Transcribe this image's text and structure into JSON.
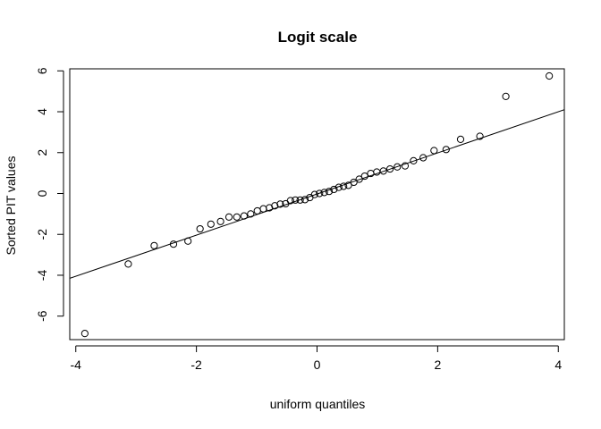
{
  "chart_data": {
    "type": "scatter",
    "title": "Logit scale",
    "xlabel": "uniform quantiles",
    "ylabel": "Sorted PIT values",
    "xlim": [
      -4.1,
      4.1
    ],
    "ylim": [
      -7.15,
      6.1
    ],
    "x_ticks": [
      -4,
      -2,
      0,
      2,
      4
    ],
    "x_tick_labels": [
      "-4",
      "-2",
      "0",
      "2",
      "4"
    ],
    "y_ticks": [
      -6,
      -4,
      -2,
      0,
      2,
      4,
      6
    ],
    "y_tick_labels": [
      "-6",
      "-4",
      "-2",
      "0",
      "2",
      "4",
      "6"
    ],
    "grid": false,
    "legend": false,
    "reference_line": {
      "x": [
        -4.1,
        4.1
      ],
      "y": [
        -4.15,
        4.1
      ]
    },
    "points": {
      "x": [
        -3.85,
        -3.13,
        -2.7,
        -2.38,
        -2.14,
        -1.94,
        -1.76,
        -1.6,
        -1.46,
        -1.33,
        -1.21,
        -1.1,
        -0.99,
        -0.89,
        -0.79,
        -0.7,
        -0.61,
        -0.52,
        -0.44,
        -0.36,
        -0.28,
        -0.2,
        -0.12,
        -0.04,
        0.04,
        0.12,
        0.2,
        0.28,
        0.36,
        0.44,
        0.52,
        0.61,
        0.7,
        0.79,
        0.89,
        0.99,
        1.1,
        1.21,
        1.33,
        1.46,
        1.6,
        1.76,
        1.94,
        2.14,
        2.38,
        2.7,
        3.13,
        3.85
      ],
      "y": [
        -6.85,
        -3.45,
        -2.55,
        -2.48,
        -2.33,
        -1.73,
        -1.5,
        -1.37,
        -1.15,
        -1.15,
        -1.1,
        -1.0,
        -0.85,
        -0.75,
        -0.7,
        -0.6,
        -0.52,
        -0.5,
        -0.35,
        -0.32,
        -0.32,
        -0.3,
        -0.2,
        -0.05,
        0.0,
        0.05,
        0.1,
        0.2,
        0.3,
        0.35,
        0.4,
        0.55,
        0.7,
        0.85,
        0.98,
        1.05,
        1.1,
        1.2,
        1.3,
        1.35,
        1.6,
        1.75,
        2.1,
        2.15,
        2.65,
        2.8,
        4.75,
        5.75
      ]
    }
  }
}
